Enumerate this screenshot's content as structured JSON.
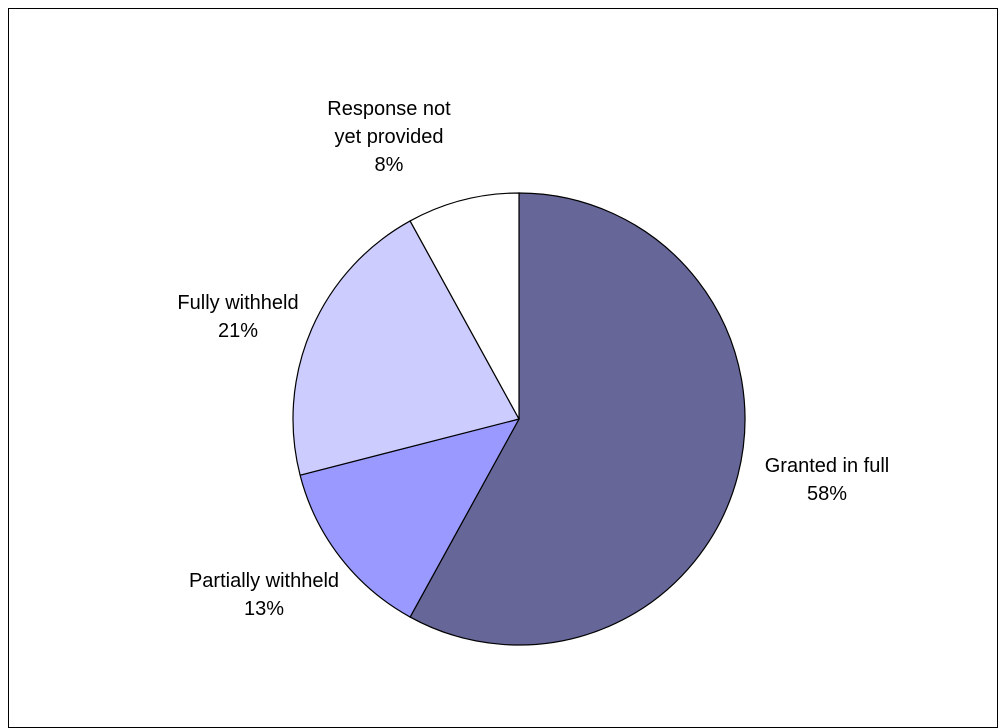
{
  "chart_data": {
    "type": "pie",
    "title": "",
    "slices": [
      {
        "label_lines": [
          "Granted in full"
        ],
        "value_label": "58%",
        "value": 58,
        "color": "#666699"
      },
      {
        "label_lines": [
          "Partially withheld"
        ],
        "value_label": "13%",
        "value": 13,
        "color": "#9999FF"
      },
      {
        "label_lines": [
          "Fully withheld"
        ],
        "value_label": "21%",
        "value": 21,
        "color": "#CCCCFF"
      },
      {
        "label_lines": [
          "Response not",
          "yet provided"
        ],
        "value_label": "8%",
        "value": 8,
        "color": "#FFFFFF"
      }
    ],
    "start_angle": "12 o'clock",
    "direction": "clockwise",
    "legend": "none"
  }
}
